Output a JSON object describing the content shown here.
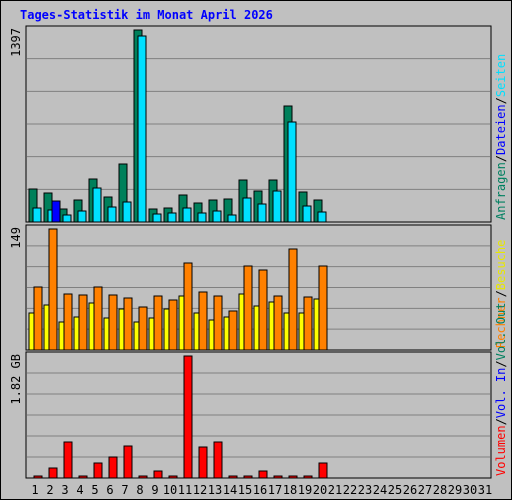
{
  "title": "Tages-Statistik im Monat April 2026",
  "chart_data": [
    {
      "type": "bar",
      "panel": "top",
      "max_label": "1397",
      "ylim": [
        0,
        1397
      ],
      "grid": true,
      "categories": [
        "1",
        "2",
        "3",
        "4",
        "5",
        "6",
        "7",
        "8",
        "9",
        "10",
        "11",
        "12",
        "13",
        "14",
        "15",
        "16",
        "17",
        "18",
        "19",
        "20",
        "21",
        "22",
        "23",
        "24",
        "25",
        "26",
        "27",
        "28",
        "29",
        "30",
        "31"
      ],
      "series": [
        {
          "name": "Anfragen",
          "color": "#00805b",
          "values": [
            237,
            212,
            97,
            161,
            310,
            184,
            423,
            1397,
            95,
            104,
            196,
            141,
            161,
            164,
            308,
            225,
            304,
            843,
            216,
            160,
            0,
            0,
            0,
            0,
            0,
            0,
            0,
            0,
            0,
            0,
            0
          ]
        },
        {
          "name": "Dateien",
          "color": "#00e0ff",
          "values": [
            105,
            84,
            52,
            77,
            244,
            110,
            142,
            1350,
            60,
            69,
            105,
            65,
            79,
            52,
            172,
            132,
            222,
            725,
            119,
            72,
            0,
            0,
            0,
            0,
            0,
            0,
            0,
            0,
            0,
            0,
            0
          ]
        },
        {
          "name": "Seiten",
          "color": "#0000ff",
          "values": [
            0,
            155,
            0,
            0,
            0,
            0,
            0,
            0,
            0,
            0,
            0,
            0,
            0,
            0,
            0,
            0,
            0,
            0,
            0,
            0,
            0,
            0,
            0,
            0,
            0,
            0,
            0,
            0,
            0,
            0,
            0
          ]
        }
      ],
      "legend": [
        "Anfragen",
        "/",
        "Dateien",
        "/",
        "Seiten"
      ],
      "legend_colors": [
        "#008060",
        "#000000",
        "#0000ff",
        "#000000",
        "#00e0ff"
      ]
    },
    {
      "type": "bar",
      "panel": "middle",
      "max_label": "149",
      "ylim": [
        0,
        149
      ],
      "grid": true,
      "categories": [
        "1",
        "2",
        "3",
        "4",
        "5",
        "6",
        "7",
        "8",
        "9",
        "10",
        "11",
        "12",
        "13",
        "14",
        "15",
        "16",
        "17",
        "18",
        "19",
        "20",
        "21",
        "22",
        "23",
        "24",
        "25",
        "26",
        "27",
        "28",
        "29",
        "30",
        "31"
      ],
      "series": [
        {
          "name": "Besuche",
          "color": "#ffff00",
          "values": [
            46,
            56,
            34,
            41,
            58,
            40,
            50,
            34,
            40,
            50,
            66,
            46,
            37,
            41,
            69,
            54,
            59,
            46,
            46,
            63,
            0,
            0,
            0,
            0,
            0,
            0,
            0,
            0,
            0,
            0,
            0
          ]
        },
        {
          "name": "Rechner",
          "color": "#ff8000",
          "values": [
            77,
            149,
            69,
            68,
            77,
            68,
            64,
            53,
            67,
            61,
            107,
            71,
            66,
            48,
            103,
            98,
            67,
            124,
            65,
            103,
            0,
            0,
            0,
            0,
            0,
            0,
            0,
            0,
            0,
            0,
            0
          ]
        }
      ],
      "legend": [
        "Rechner",
        "/",
        "Besuche"
      ],
      "legend_colors": [
        "#ff8000",
        "#000000",
        "#e8e800"
      ]
    },
    {
      "type": "bar",
      "panel": "bottom",
      "max_label": "1.82 GB",
      "unit": "GB",
      "ylim": [
        0,
        1.82
      ],
      "grid": true,
      "categories": [
        "1",
        "2",
        "3",
        "4",
        "5",
        "6",
        "7",
        "8",
        "9",
        "10",
        "11",
        "12",
        "13",
        "14",
        "15",
        "16",
        "17",
        "18",
        "19",
        "20",
        "21",
        "22",
        "23",
        "24",
        "25",
        "26",
        "27",
        "28",
        "29",
        "30",
        "31"
      ],
      "series": [
        {
          "name": "Volumen",
          "color": "#ff0000",
          "values": [
            0.011,
            0.153,
            0.538,
            0.011,
            0.22,
            0.32,
            0.476,
            0.011,
            0.099,
            0.011,
            1.82,
            0.467,
            0.538,
            0.011,
            0.011,
            0.099,
            0.011,
            0.011,
            0.011,
            0.22,
            0,
            0,
            0,
            0,
            0,
            0,
            0,
            0,
            0,
            0,
            0
          ]
        }
      ],
      "legend": [
        "Volumen",
        "/",
        "Vol. In",
        "/",
        "Vol. Out"
      ],
      "legend_colors": [
        "#ff0000",
        "#000000",
        "#0000ff",
        "#000000",
        "#008060"
      ]
    }
  ],
  "weekend_days": [
    4,
    5,
    11,
    12,
    18,
    19,
    25,
    26
  ],
  "colors": {
    "background": "#c0c0c0",
    "title": "#0000ff",
    "weekday_label": "#000000",
    "weekend_label": "#008060"
  }
}
